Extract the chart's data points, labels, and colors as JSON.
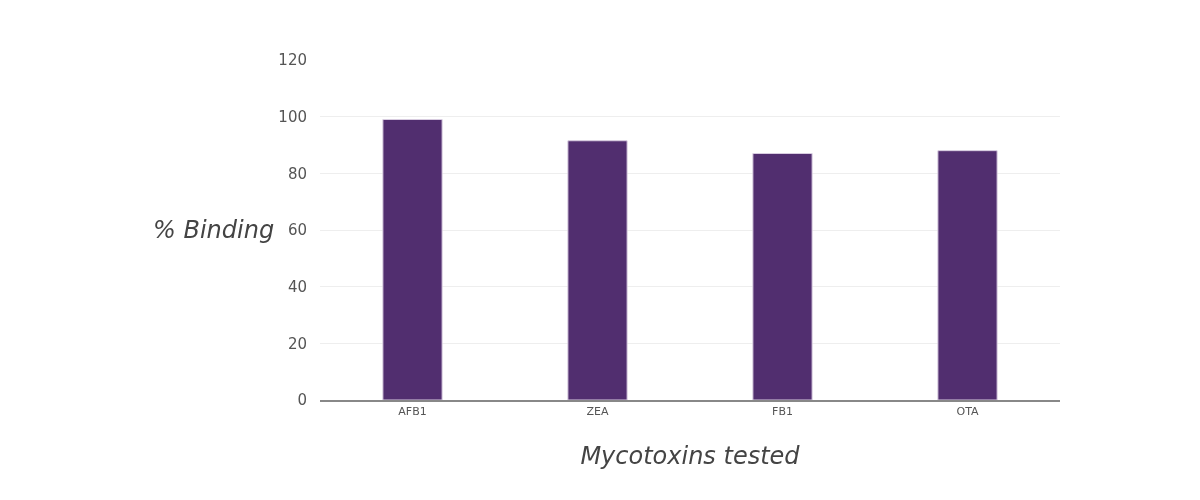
{
  "chart_data": {
    "type": "bar",
    "xlabel": "Mycotoxins tested",
    "ylabel": "% Binding",
    "categories": [
      "AFB1",
      "ZEA",
      "FB1",
      "OTA"
    ],
    "values": [
      99,
      91.5,
      87,
      88
    ],
    "color": "#512e6f",
    "ylim": [
      0,
      120
    ],
    "yticks": [
      0,
      20,
      40,
      60,
      80,
      100,
      120
    ],
    "grid": "y"
  }
}
